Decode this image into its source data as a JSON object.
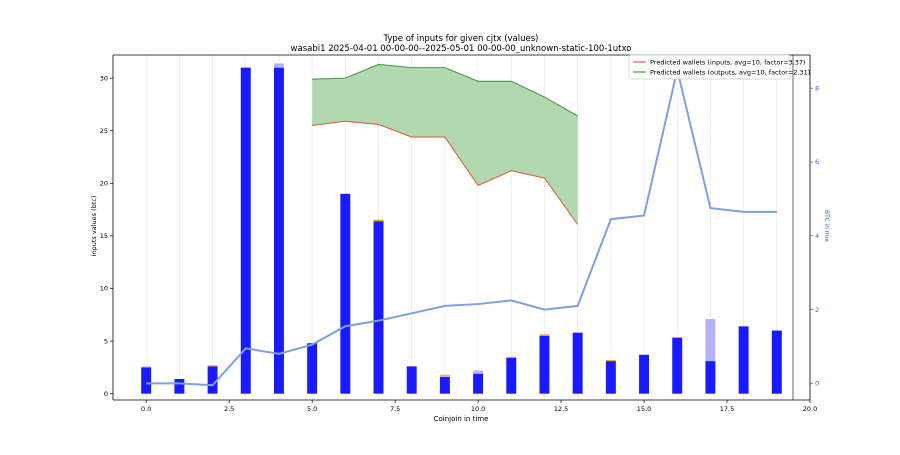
{
  "chart_data": {
    "type": "bar",
    "title": "Type of inputs for given cjtx (values)",
    "subtitle": "wasabi1 2025-04-01 00-00-00--2025-05-01 00-00-00_unknown-static-100-1utxo",
    "xlabel": "Coinjoin in time",
    "ylabel": "Inputs values (btc)",
    "y2label": "BTC in mix",
    "xlim": [
      -1.0,
      20.0
    ],
    "ylim": [
      -0.6,
      32.2
    ],
    "y2lim": [
      -0.45,
      8.9
    ],
    "xticks": [
      0.0,
      2.5,
      5.0,
      7.5,
      10.0,
      12.5,
      15.0,
      17.5,
      20.0
    ],
    "xtick_labels": [
      "0.0",
      "2.5",
      "5.0",
      "7.5",
      "10.0",
      "12.5",
      "15.0",
      "17.5",
      "20.0"
    ],
    "yticks": [
      0,
      5,
      10,
      15,
      20,
      25,
      30
    ],
    "ytick_labels": [
      "0",
      "5",
      "10",
      "15",
      "20",
      "25",
      "30"
    ],
    "y2ticks": [
      0,
      2,
      4,
      6,
      8
    ],
    "y2tick_labels": [
      "0",
      "2",
      "4",
      "6",
      "8"
    ],
    "grid": "vertical",
    "legend_position": "top-right",
    "colors": {
      "bar_main": "#1a1aff",
      "bar_light": "#b3b3f5",
      "bar_orange": "#f2a900",
      "inputs_line": "#d9634a",
      "outputs_line": "#4a9a4a",
      "fill": "#b2d8b0",
      "mix_line": "#7f9fe3",
      "right_axis": "#3b5bd6",
      "tick_gray": "#333333"
    },
    "x": [
      0,
      1,
      2,
      3,
      4,
      5,
      6,
      7,
      8,
      9,
      10,
      11,
      12,
      13,
      14,
      15,
      16,
      17,
      18,
      19
    ],
    "series": [
      {
        "kind": "bar",
        "values": [
          2.5,
          1.4,
          2.6,
          31.0,
          31.0,
          4.8,
          19.0,
          16.4,
          2.6,
          1.6,
          1.9,
          3.4,
          5.5,
          5.8,
          3.1,
          3.7,
          5.3,
          3.1,
          6.4,
          6.0
        ]
      },
      {
        "kind": "bar-light",
        "values": [
          0.1,
          0.0,
          0.0,
          0.0,
          0.4,
          0.0,
          0.0,
          0.0,
          0.0,
          0.1,
          0.3,
          0.0,
          0.0,
          0.0,
          0.0,
          0.0,
          0.0,
          4.0,
          0.0,
          0.0
        ]
      },
      {
        "kind": "bar-orange",
        "values": [
          0.0,
          0.0,
          0.1,
          0.0,
          0.0,
          0.0,
          0.0,
          0.15,
          0.0,
          0.1,
          0.0,
          0.1,
          0.15,
          0.0,
          0.1,
          0.0,
          0.1,
          0.0,
          0.0,
          0.0
        ]
      },
      {
        "kind": "line",
        "name": "Predicted wallets (inputs, avg=10, factor=3.37)",
        "x": [
          5,
          6,
          7,
          8,
          9,
          10,
          11,
          12,
          13
        ],
        "values": [
          25.5,
          25.9,
          25.6,
          24.4,
          24.4,
          19.8,
          21.2,
          20.5,
          16.1
        ]
      },
      {
        "kind": "line",
        "name": "Predicted wallets (outputs, avg=10, factor=2.31)",
        "x": [
          5,
          6,
          7,
          8,
          9,
          10,
          11,
          12,
          13
        ],
        "values": [
          29.9,
          30.0,
          31.3,
          31.0,
          31.0,
          29.7,
          29.7,
          28.2,
          26.4
        ]
      },
      {
        "kind": "line-right-axis",
        "x": [
          0,
          1,
          2,
          3,
          4,
          5,
          6,
          7,
          8,
          9,
          10,
          11,
          12,
          13,
          14,
          15,
          16,
          17,
          18,
          19
        ],
        "values": [
          0.0,
          0.0,
          -0.05,
          0.95,
          0.8,
          1.05,
          1.55,
          1.7,
          1.9,
          2.1,
          2.15,
          2.25,
          2.0,
          2.1,
          4.45,
          4.55,
          8.5,
          4.75,
          4.65,
          4.65
        ]
      }
    ]
  }
}
